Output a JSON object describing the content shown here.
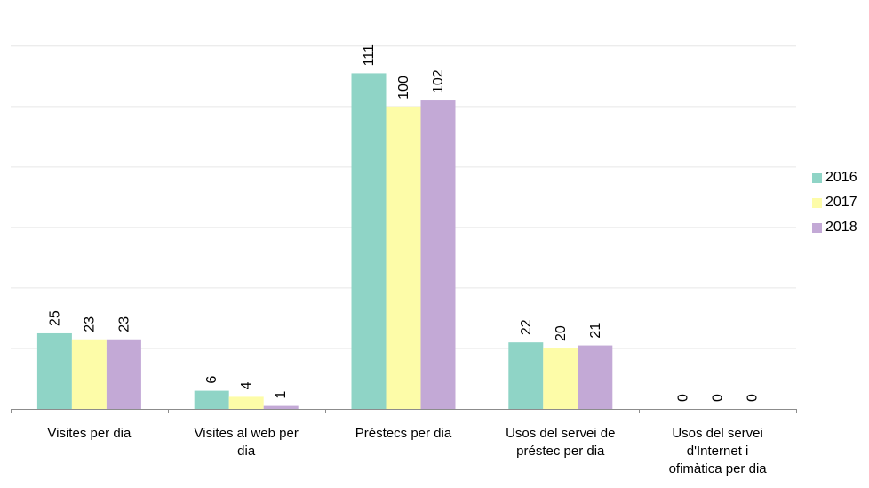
{
  "chart_data": {
    "type": "bar",
    "categories": [
      "Visites per dia",
      "Visites al web per dia",
      "Préstecs per dia",
      "Usos del servei de préstec per dia",
      "Usos del servei d'Internet i ofimàtica per dia"
    ],
    "category_lines": [
      [
        "Visites per dia"
      ],
      [
        "Visites al web per",
        "dia"
      ],
      [
        "Préstecs per dia"
      ],
      [
        "Usos del servei de",
        "préstec per dia"
      ],
      [
        "Usos del servei",
        "d'Internet i",
        "ofimàtica per dia"
      ]
    ],
    "series": [
      {
        "name": "2016",
        "color": "#8fd4c6",
        "values": [
          25,
          6,
          111,
          22,
          0
        ]
      },
      {
        "name": "2017",
        "color": "#fdfca8",
        "values": [
          23,
          4,
          100,
          20,
          0
        ]
      },
      {
        "name": "2018",
        "color": "#c3a9d6",
        "values": [
          23,
          1,
          102,
          21,
          0
        ]
      }
    ],
    "ylim": [
      0,
      127
    ],
    "grid": true,
    "legend_position": "right",
    "title": "",
    "xlabel": "",
    "ylabel": ""
  }
}
